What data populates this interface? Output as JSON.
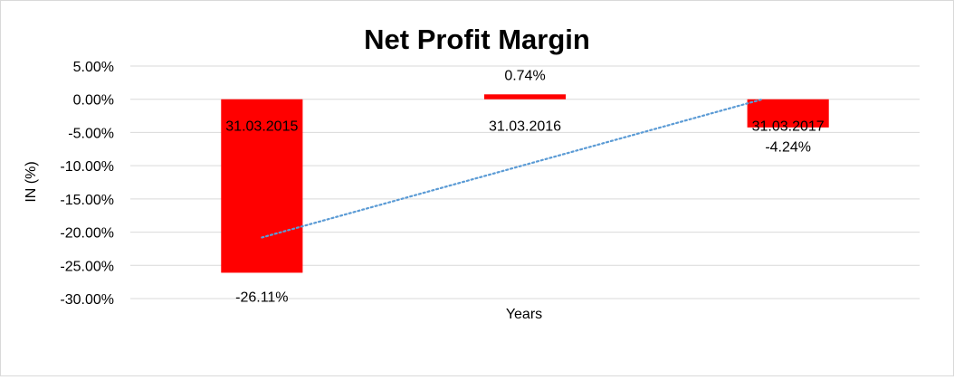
{
  "chart_data": {
    "type": "bar",
    "title": "Net Profit Margin",
    "xlabel": "Years",
    "ylabel": "IN (%)",
    "categories": [
      "31.03.2015",
      "31.03.2016",
      "31.03.2017"
    ],
    "values": [
      -26.11,
      0.74,
      -4.24
    ],
    "value_labels": [
      "-26.11%",
      "0.74%",
      "-4.24%"
    ],
    "ylim": [
      -30,
      5
    ],
    "yticks": [
      5,
      0,
      -5,
      -10,
      -15,
      -20,
      -25,
      -30
    ],
    "ytick_labels": [
      "5.00%",
      "0.00%",
      "-5.00%",
      "-10.00%",
      "-15.00%",
      "-20.00%",
      "-25.00%",
      "-30.00%"
    ],
    "bar_color": "#ff0000",
    "trendline": {
      "type": "linear",
      "color": "#5b9bd5",
      "style": "dotted"
    },
    "grid": true,
    "legend": "none"
  }
}
